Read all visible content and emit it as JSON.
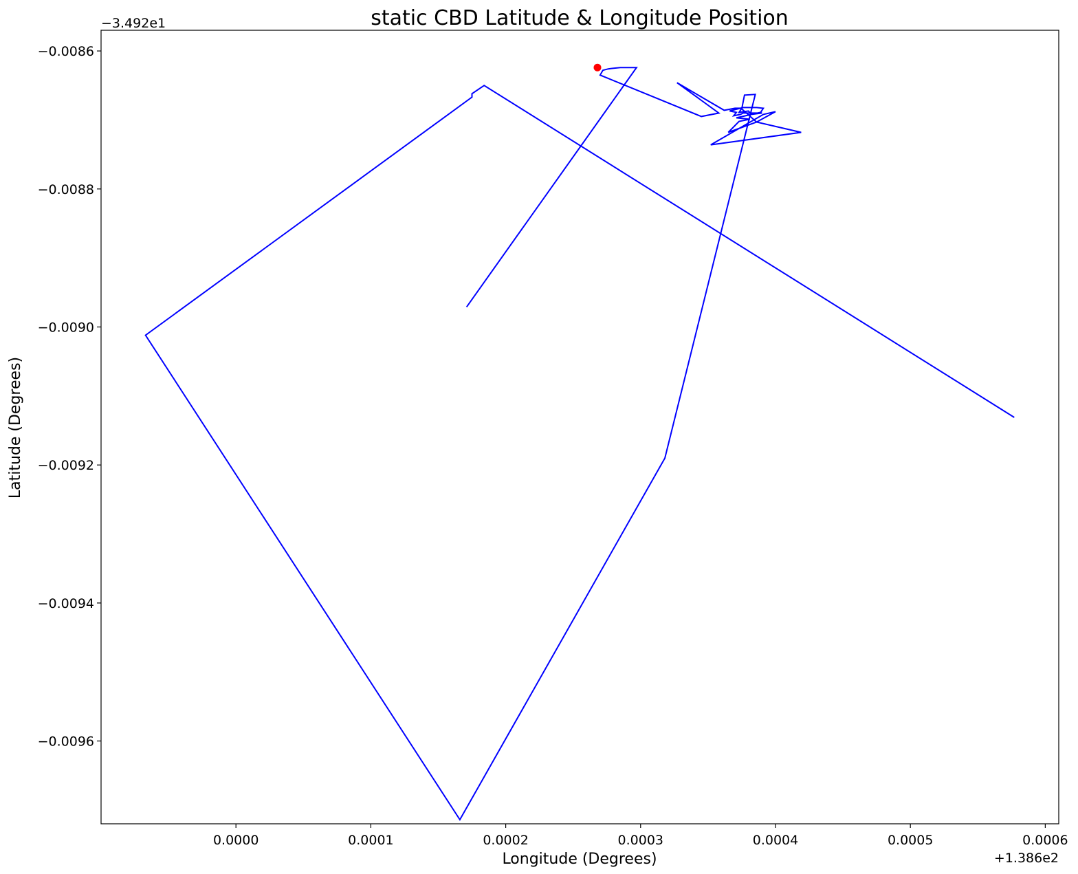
{
  "chart_data": {
    "type": "line",
    "title": "static CBD Latitude & Longitude Position",
    "xlabel": "Longitude (Degrees)",
    "ylabel": "Latitude (Degrees)",
    "x_offset_label": "+1.386e2",
    "y_offset_label": "−3.492e1",
    "xlim": [
      -0.0001,
      0.00061
    ],
    "ylim": [
      -0.00972,
      -0.00857
    ],
    "x_ticks": [
      {
        "value": 0.0,
        "label": "0.0000"
      },
      {
        "value": 0.0001,
        "label": "0.0001"
      },
      {
        "value": 0.0002,
        "label": "0.0002"
      },
      {
        "value": 0.0003,
        "label": "0.0003"
      },
      {
        "value": 0.0004,
        "label": "0.0004"
      },
      {
        "value": 0.0005,
        "label": "0.0005"
      },
      {
        "value": 0.0006,
        "label": "0.0006"
      }
    ],
    "y_ticks": [
      {
        "value": -0.0086,
        "label": "−0.0086"
      },
      {
        "value": -0.0088,
        "label": "−0.0088"
      },
      {
        "value": -0.009,
        "label": "−0.0090"
      },
      {
        "value": -0.0092,
        "label": "−0.0092"
      },
      {
        "value": -0.0094,
        "label": "−0.0094"
      },
      {
        "value": -0.0096,
        "label": "−0.0096"
      }
    ],
    "grid": false,
    "colors": {
      "path": "#0000ff",
      "marker": "#ff0000"
    },
    "series": [
      {
        "points": [
          [
            0.000171,
            -0.008971
          ],
          [
            0.000297,
            -0.008624
          ],
          [
            0.000285,
            -0.008624
          ],
          [
            0.00028,
            -0.008625
          ],
          [
            0.000276,
            -0.008626
          ],
          [
            0.000272,
            -0.008628
          ],
          [
            0.00027,
            -0.008635
          ],
          [
            0.000345,
            -0.008695
          ],
          [
            0.000358,
            -0.00869
          ],
          [
            0.000327,
            -0.008646
          ],
          [
            0.000362,
            -0.008686
          ],
          [
            0.00037,
            -0.008683
          ],
          [
            0.000375,
            -0.008683
          ],
          [
            0.000373,
            -0.008689
          ],
          [
            0.00038,
            -0.008687
          ],
          [
            0.000382,
            -0.008692
          ],
          [
            0.00039,
            -0.00869
          ],
          [
            0.000376,
            -0.00869
          ],
          [
            0.000374,
            -0.008692
          ],
          [
            0.000369,
            -0.008694
          ],
          [
            0.000371,
            -0.008689
          ],
          [
            0.000366,
            -0.008687
          ],
          [
            0.000376,
            -0.008682
          ],
          [
            0.000382,
            -0.008682
          ],
          [
            0.000386,
            -0.008682
          ],
          [
            0.000391,
            -0.008683
          ],
          [
            0.000389,
            -0.008689
          ],
          [
            0.000371,
            -0.008697
          ],
          [
            0.000381,
            -0.008699
          ],
          [
            0.000373,
            -0.008702
          ],
          [
            0.000365,
            -0.008718
          ],
          [
            0.000386,
            -0.008703
          ],
          [
            0.0004,
            -0.008688
          ],
          [
            0.000391,
            -0.008692
          ],
          [
            0.000352,
            -0.008736
          ],
          [
            0.000419,
            -0.008718
          ],
          [
            0.000386,
            -0.008703
          ],
          [
            0.000375,
            -0.008684
          ],
          [
            0.000377,
            -0.008664
          ],
          [
            0.000385,
            -0.008663
          ],
          [
            0.000318,
            -0.00919
          ],
          [
            0.000166,
            -0.009714
          ],
          [
            -6.7e-05,
            -0.009012
          ],
          [
            0.000175,
            -0.008667
          ],
          [
            0.000175,
            -0.008662
          ],
          [
            0.000184,
            -0.00865
          ],
          [
            0.000577,
            -0.009131
          ]
        ],
        "marker_points": [
          [
            0.000268,
            -0.008624
          ]
        ]
      }
    ]
  }
}
